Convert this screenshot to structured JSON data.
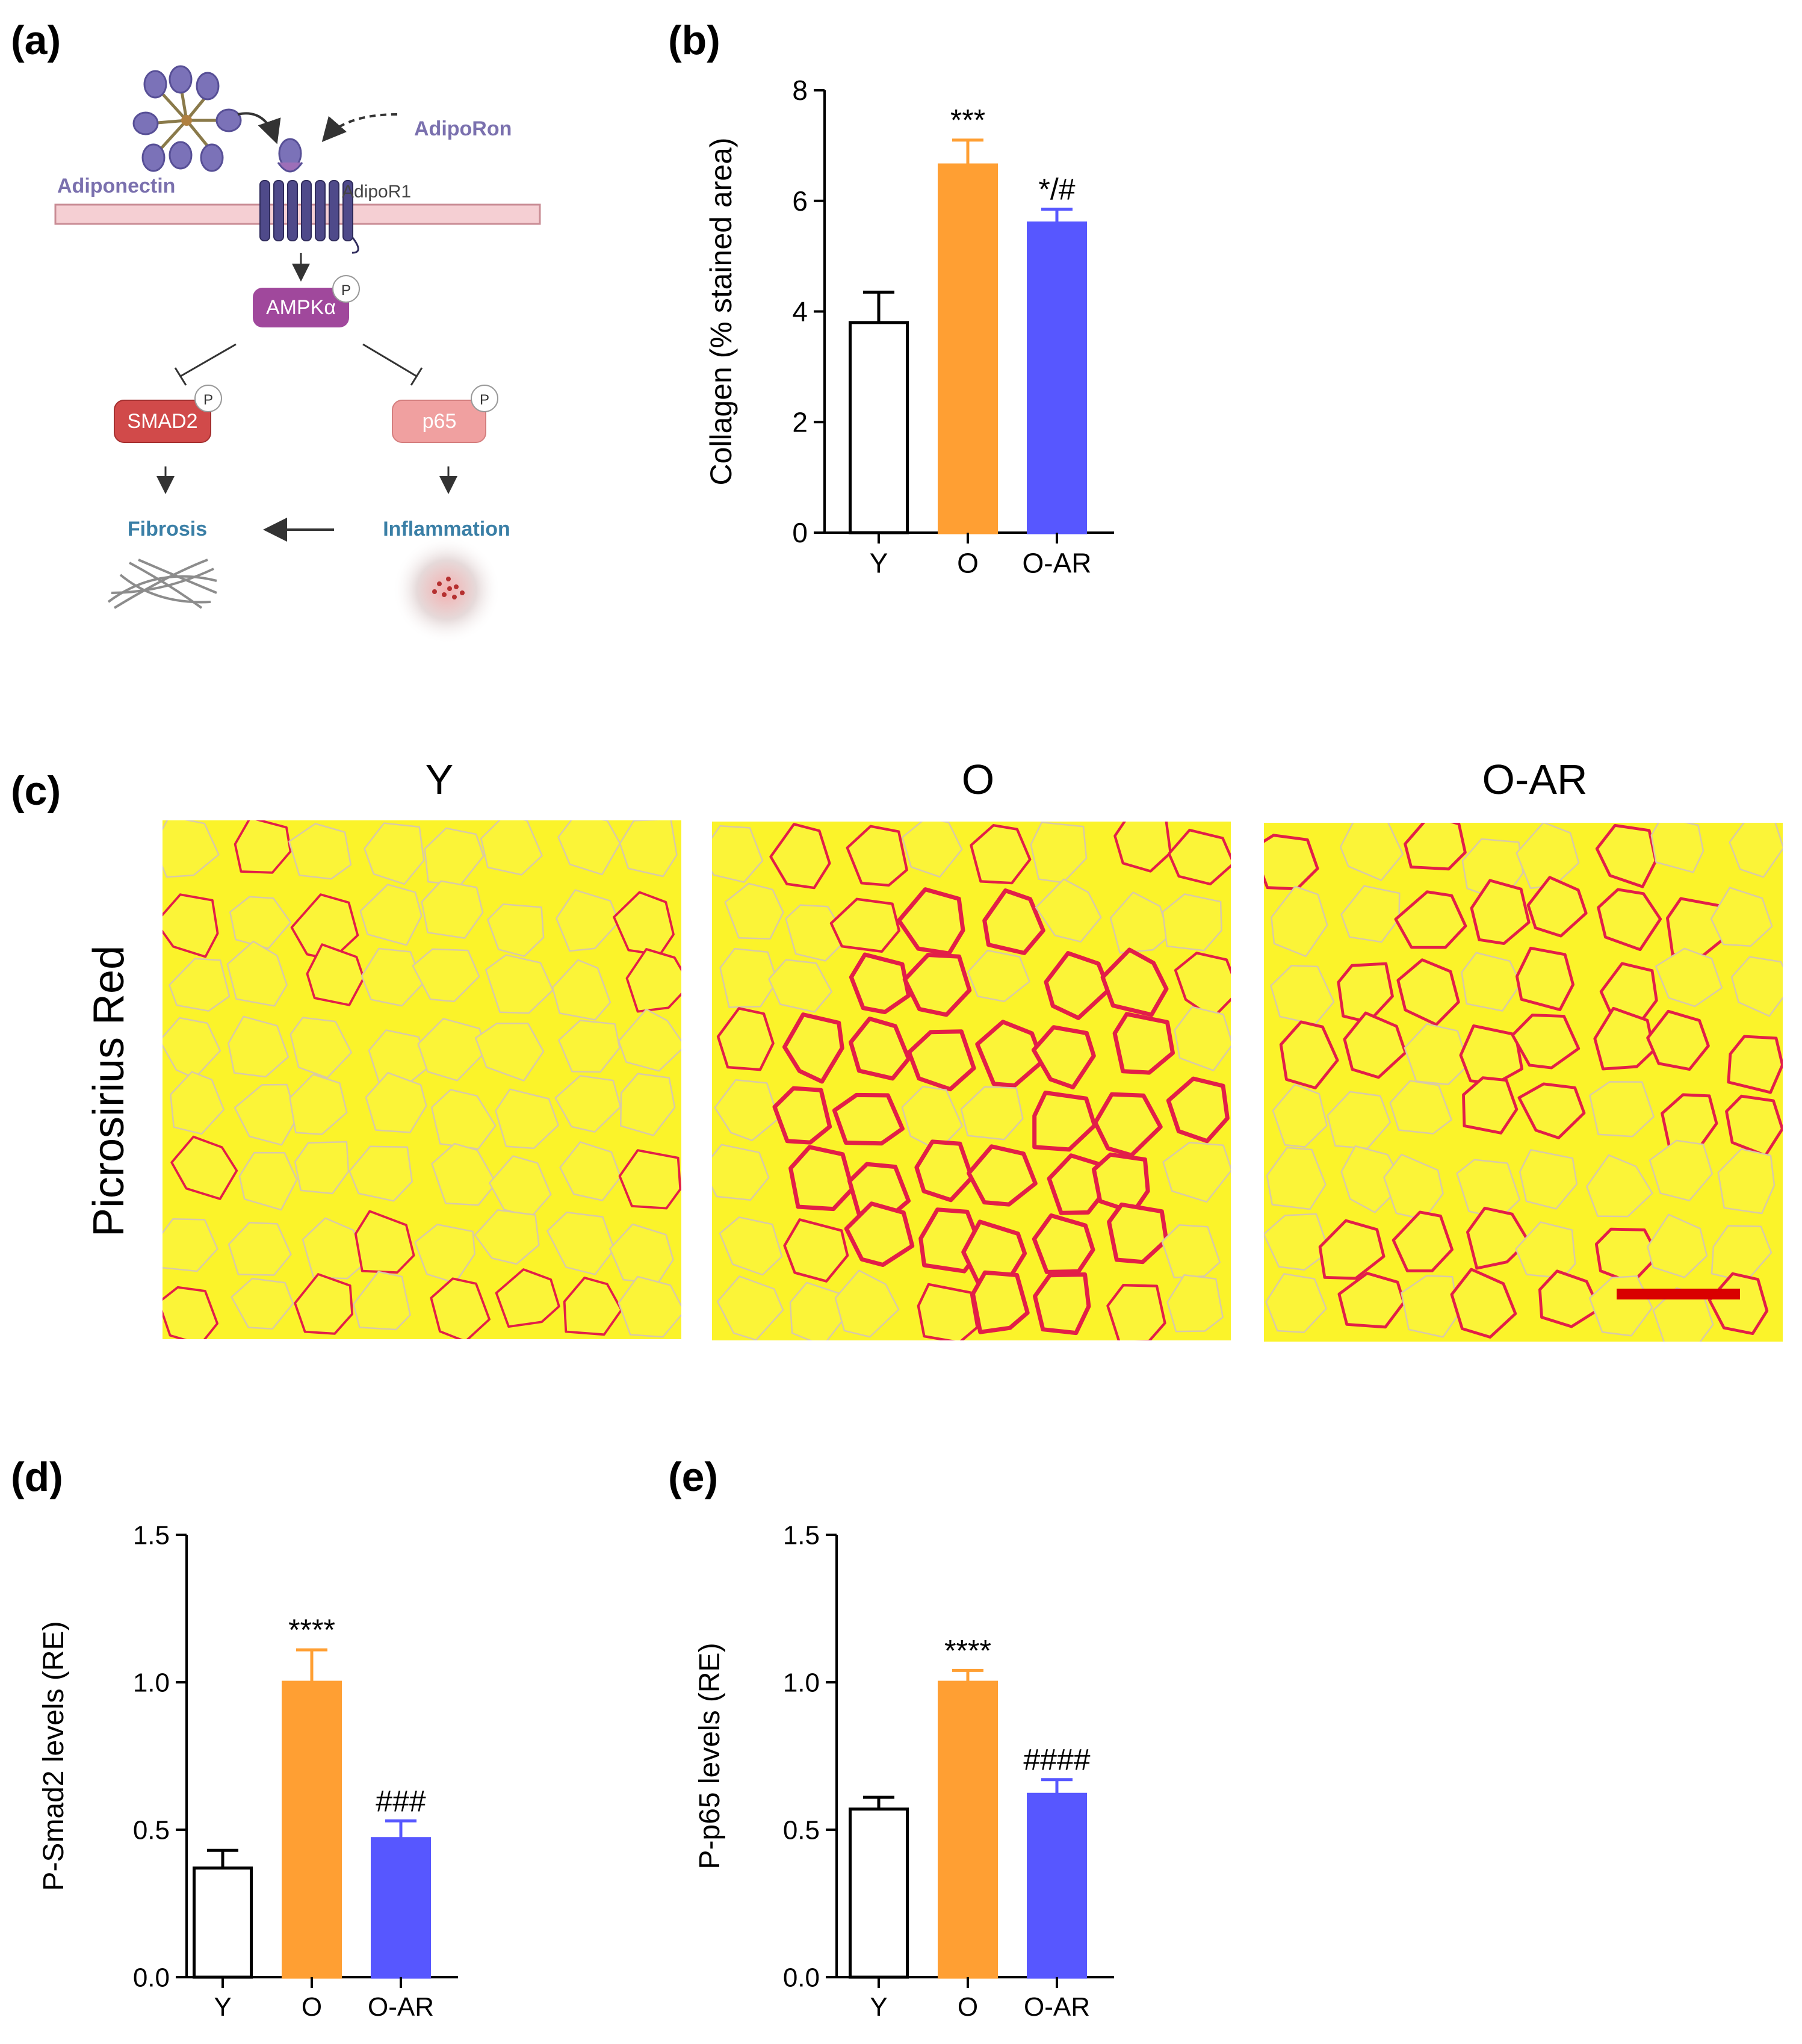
{
  "panels": {
    "a": "(a)",
    "b": "(b)",
    "c": "(c)",
    "d": "(d)",
    "e": "(e)"
  },
  "colors": {
    "Y": "#ffffff",
    "O": "#ff9f33",
    "O-AR": "#5757ff",
    "axis": "#000000",
    "stain_yellow": "#fbf32a",
    "collagen_red": "#e21e48",
    "scale_bar": "#d90000"
  },
  "diagram": {
    "ligand": "Adiponectin",
    "drug": "AdipoRon",
    "receptor": "AdipoR1",
    "kinase": "AMPKα",
    "targets": [
      "SMAD2",
      "p65"
    ],
    "outcomes": [
      "Fibrosis",
      "Inflammation"
    ],
    "phospho_label": "P"
  },
  "micrographs": {
    "columns": [
      "Y",
      "O",
      "O-AR"
    ],
    "row_label": "Picrosirius Red",
    "red_intensity": [
      0.35,
      1.0,
      0.55
    ]
  },
  "chart_data": [
    {
      "id": "b",
      "type": "bar",
      "categories": [
        "Y",
        "O",
        "O-AR"
      ],
      "values": [
        3.8,
        6.65,
        5.6
      ],
      "errors": [
        0.55,
        0.45,
        0.25
      ],
      "significance": [
        "",
        "***",
        "*/#"
      ],
      "ylabel": "Collagen (% stained area)",
      "ylim": [
        0,
        8
      ],
      "yticks": [
        "0",
        "2",
        "4",
        "6",
        "8"
      ],
      "ytick_values": [
        0,
        2,
        4,
        6,
        8
      ]
    },
    {
      "id": "d",
      "type": "bar",
      "categories": [
        "Y",
        "O",
        "O-AR"
      ],
      "values": [
        0.37,
        1.0,
        0.47
      ],
      "errors": [
        0.06,
        0.11,
        0.06
      ],
      "significance": [
        "",
        "****",
        "###"
      ],
      "ylabel": "P-Smad2 levels (RE)",
      "ylim": [
        0,
        1.5
      ],
      "yticks": [
        "0.0",
        "0.5",
        "1.0",
        "1.5"
      ],
      "ytick_values": [
        0,
        0.5,
        1.0,
        1.5
      ]
    },
    {
      "id": "e",
      "type": "bar",
      "categories": [
        "Y",
        "O",
        "O-AR"
      ],
      "values": [
        0.57,
        1.0,
        0.62
      ],
      "errors": [
        0.04,
        0.04,
        0.05
      ],
      "significance": [
        "",
        "****",
        "####"
      ],
      "ylabel": "P-p65 levels (RE)",
      "ylim": [
        0,
        1.5
      ],
      "yticks": [
        "0.0",
        "0.5",
        "1.0",
        "1.5"
      ],
      "ytick_values": [
        0,
        0.5,
        1.0,
        1.5
      ]
    }
  ]
}
